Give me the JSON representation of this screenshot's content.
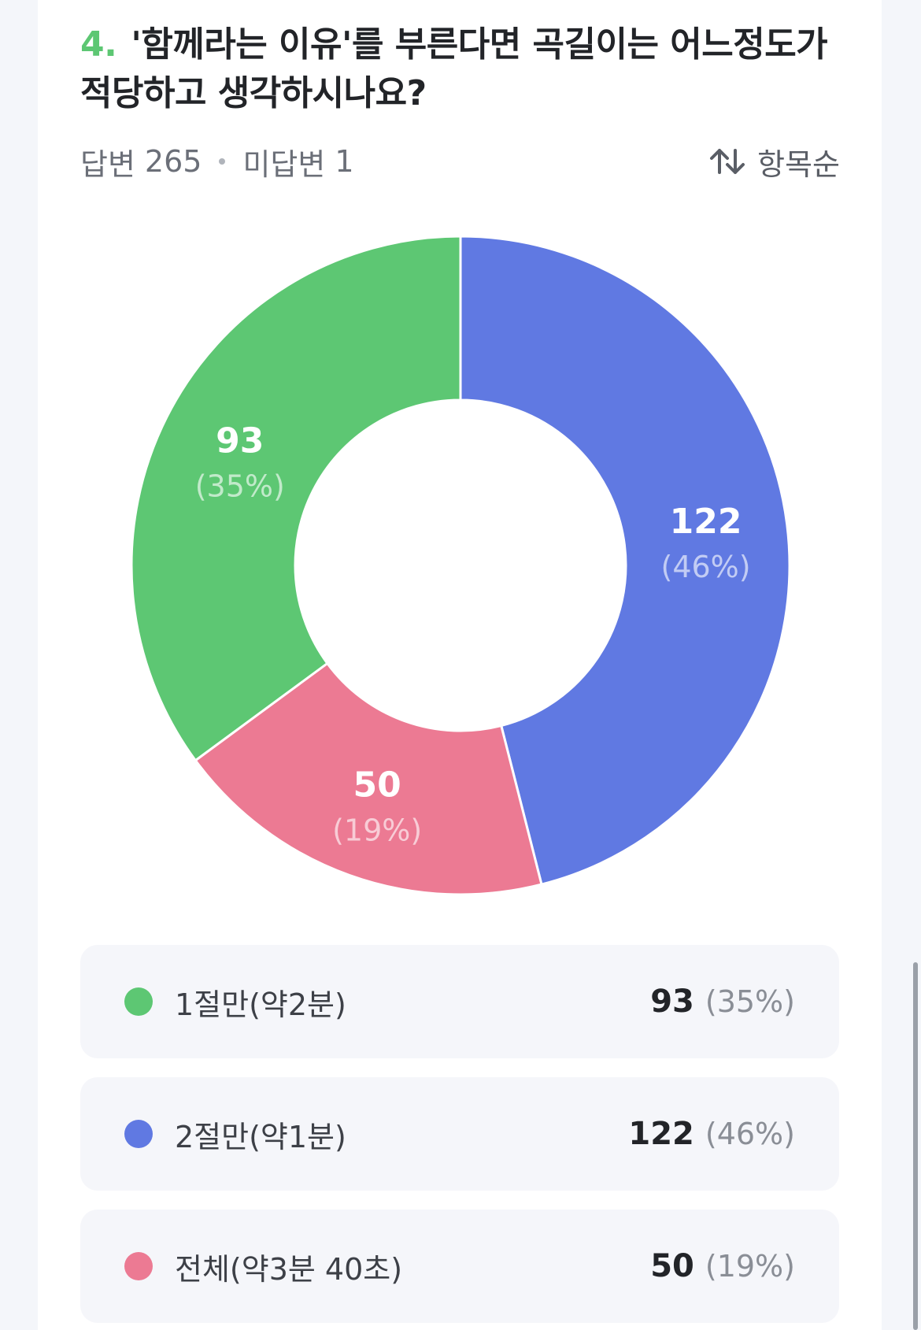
{
  "question": {
    "number": "4.",
    "text": "'함께라는 이유'를 부른다면 곡길이는 어느정도가 적당하고 생각하시나요?"
  },
  "summary": {
    "answered_label": "답변",
    "answered_count": "265",
    "unanswered_label": "미답변",
    "unanswered_count": "1"
  },
  "sort": {
    "label": "항목순",
    "icon": "sort-arrows-icon"
  },
  "colors": {
    "green": "#5dc773",
    "blue": "#6079e2",
    "pink": "#ec7a93"
  },
  "chart_data": {
    "type": "pie",
    "donut": true,
    "total": 265,
    "slices": [
      {
        "label": "1절만(약2분)",
        "value": 93,
        "percent": "(35%)",
        "color": "#5dc773"
      },
      {
        "label": "2절만(약1분)",
        "value": 122,
        "percent": "(46%)",
        "color": "#6079e2"
      },
      {
        "label": "전체(약3분 40초)",
        "value": 50,
        "percent": "(19%)",
        "color": "#ec7a93"
      }
    ],
    "start_angle_deg": 0,
    "direction": "clockwise",
    "order": [
      1,
      2,
      0
    ]
  }
}
